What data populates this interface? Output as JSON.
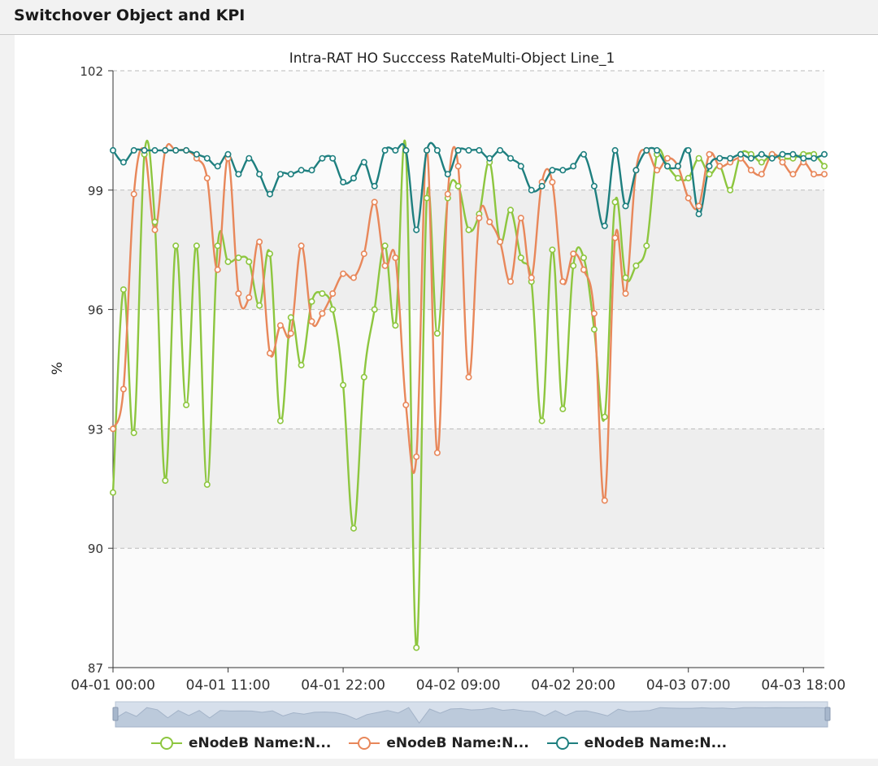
{
  "header": {
    "title": "Switchover Object and KPI"
  },
  "chart_data": {
    "type": "line",
    "title": "Intra-RAT HO Succcess RateMulti-Object Line_1",
    "ylabel": "%",
    "xlabel": "",
    "ylim": [
      87,
      102
    ],
    "yticks": [
      "87",
      "90",
      "93",
      "96",
      "99",
      "102"
    ],
    "xtick_labels": [
      "04-01 00:00",
      "04-01 11:00",
      "04-01 22:00",
      "04-02 09:00",
      "04-02 20:00",
      "04-03 07:00",
      "04-03 18:00"
    ],
    "x_range_hours": [
      0,
      68
    ],
    "grid": true,
    "legend_position": "bottom",
    "series": [
      {
        "name": "eNodeB Name:N...",
        "color": "#8dc63f",
        "values": [
          91.4,
          96.5,
          92.9,
          99.9,
          98.2,
          91.7,
          97.6,
          93.6,
          97.6,
          91.6,
          97.6,
          97.2,
          97.3,
          97.2,
          96.1,
          97.4,
          93.2,
          95.8,
          94.6,
          96.2,
          96.4,
          96.0,
          94.1,
          90.5,
          94.3,
          96.0,
          97.6,
          95.6,
          100.0,
          87.5,
          98.8,
          95.4,
          98.8,
          99.1,
          98.0,
          98.4,
          99.7,
          97.7,
          98.5,
          97.3,
          96.7,
          93.2,
          97.5,
          93.5,
          97.1,
          97.3,
          95.5,
          93.3,
          98.7,
          96.8,
          97.1,
          97.6,
          99.9,
          99.6,
          99.3,
          99.3,
          99.8,
          99.4,
          99.6,
          99.0,
          99.9,
          99.9,
          99.7,
          99.9,
          99.8,
          99.8,
          99.9,
          99.9,
          99.6
        ]
      },
      {
        "name": "eNodeB Name:N...",
        "color": "#e8875a",
        "values": [
          93.0,
          94.0,
          98.9,
          100.0,
          98.0,
          100.0,
          100.0,
          100.0,
          99.8,
          99.3,
          97.0,
          99.8,
          96.4,
          96.3,
          97.7,
          94.9,
          95.6,
          95.4,
          97.6,
          95.7,
          95.9,
          96.4,
          96.9,
          96.8,
          97.4,
          98.7,
          97.1,
          97.3,
          93.6,
          92.3,
          100.0,
          92.4,
          98.9,
          99.6,
          94.3,
          98.3,
          98.2,
          97.7,
          96.7,
          98.3,
          96.8,
          99.2,
          99.2,
          96.7,
          97.4,
          97.0,
          95.9,
          91.2,
          97.8,
          96.4,
          99.5,
          100.0,
          99.5,
          99.8,
          99.6,
          98.8,
          98.6,
          99.9,
          99.6,
          99.7,
          99.8,
          99.5,
          99.4,
          99.9,
          99.7,
          99.4,
          99.7,
          99.4,
          99.4
        ]
      },
      {
        "name": "eNodeB Name:N...",
        "color": "#1e7f7f",
        "values": [
          100.0,
          99.7,
          100.0,
          100.0,
          100.0,
          100.0,
          100.0,
          100.0,
          99.9,
          99.8,
          99.6,
          99.9,
          99.4,
          99.8,
          99.4,
          98.9,
          99.4,
          99.4,
          99.5,
          99.5,
          99.8,
          99.8,
          99.2,
          99.3,
          99.7,
          99.1,
          100.0,
          100.0,
          100.0,
          98.0,
          100.0,
          100.0,
          99.4,
          100.0,
          100.0,
          100.0,
          99.8,
          100.0,
          99.8,
          99.6,
          99.0,
          99.1,
          99.5,
          99.5,
          99.6,
          99.9,
          99.1,
          98.1,
          100.0,
          98.6,
          99.5,
          100.0,
          100.0,
          99.6,
          99.6,
          100.0,
          98.4,
          99.6,
          99.8,
          99.8,
          99.9,
          99.8,
          99.9,
          99.8,
          99.9,
          99.9,
          99.8,
          99.8,
          99.9
        ]
      }
    ]
  }
}
